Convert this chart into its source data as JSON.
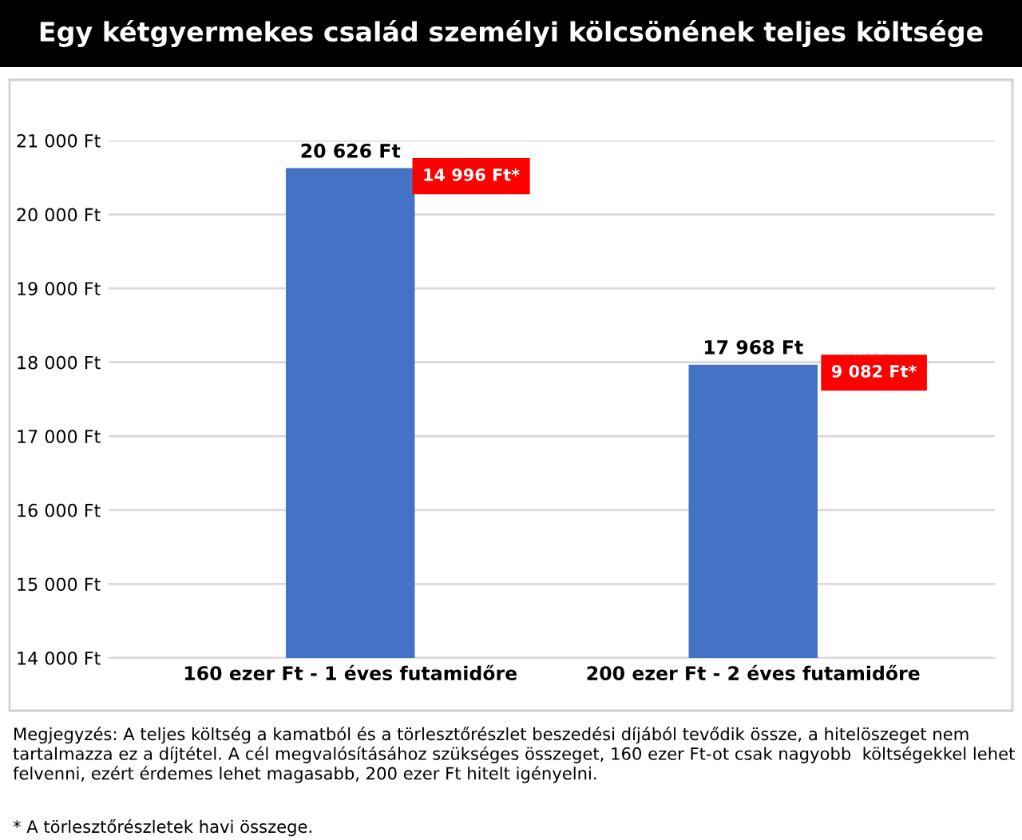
{
  "chart_data": {
    "type": "bar",
    "title": "Egy kétgyermekes család személyi kölcsönének teljes költsége",
    "categories": [
      "160 ezer Ft - 1 éves futamidőre",
      "200 ezer Ft - 2 éves futamidőre"
    ],
    "values": [
      20626,
      17968
    ],
    "color": "#4472c4",
    "value_labels": [
      "20 626 Ft",
      "17 968 Ft"
    ],
    "ylim": [
      14000,
      21000
    ],
    "yticks": [
      {
        "value": 14000,
        "label": "14 000 Ft"
      },
      {
        "value": 15000,
        "label": "15 000 Ft"
      },
      {
        "value": 16000,
        "label": "16 000 Ft"
      },
      {
        "value": 17000,
        "label": "17 000 Ft"
      },
      {
        "value": 18000,
        "label": "18 000 Ft"
      },
      {
        "value": 19000,
        "label": "19 000 Ft"
      },
      {
        "value": 20000,
        "label": "20 000 Ft"
      },
      {
        "value": 21000,
        "label": "21 000 Ft"
      }
    ],
    "grid": "y",
    "annotations": [
      "14 996 Ft*",
      "9 082 Ft*",
      "Megjegyzés: A teljes költség a kamatból és a törlesztőrészlet beszedési díjából tevődik össze, a hitelöszeget nem tartalmazza ez a díjtétel. A cél megvalósításához szükséges összeget, 160 ezer Ft-ot csak nagyobb  költségekkel lehet felvenni, ezért érdemes lehet magasabb, 200 ezer Ft hitelt igényelni.",
      "* A törlesztőrészletek havi összege."
    ]
  }
}
